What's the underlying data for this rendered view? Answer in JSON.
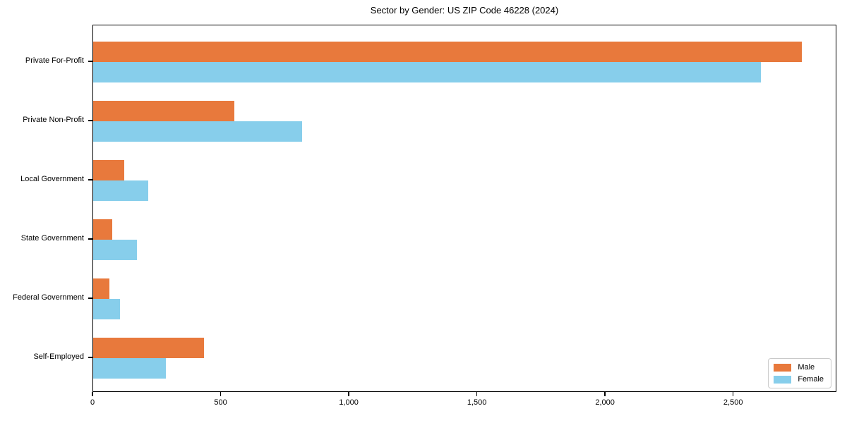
{
  "chart_data": {
    "type": "bar",
    "orientation": "horizontal",
    "title": "Sector by Gender: US ZIP Code 46228 (2024)",
    "categories": [
      "Private For-Profit",
      "Private Non-Profit",
      "Local Government",
      "State Government",
      "Federal Government",
      "Self-Employed"
    ],
    "series": [
      {
        "name": "Male",
        "color": "#E8793C",
        "values": [
          2765,
          551,
          121,
          74,
          63,
          432
        ]
      },
      {
        "name": "Female",
        "color": "#87CEEB",
        "values": [
          2605,
          814,
          215,
          172,
          105,
          284
        ]
      }
    ],
    "xlabel": "",
    "ylabel": "",
    "xlim": [
      0,
      2903
    ],
    "xticks": [
      0,
      500,
      1000,
      1500,
      2000,
      2500
    ],
    "xtick_labels": [
      "0",
      "500",
      "1,000",
      "1,500",
      "2,000",
      "2,500"
    ],
    "grid": false,
    "legend_position": "lower right",
    "background_color": "#ffffff",
    "axis_color": "#000000"
  }
}
